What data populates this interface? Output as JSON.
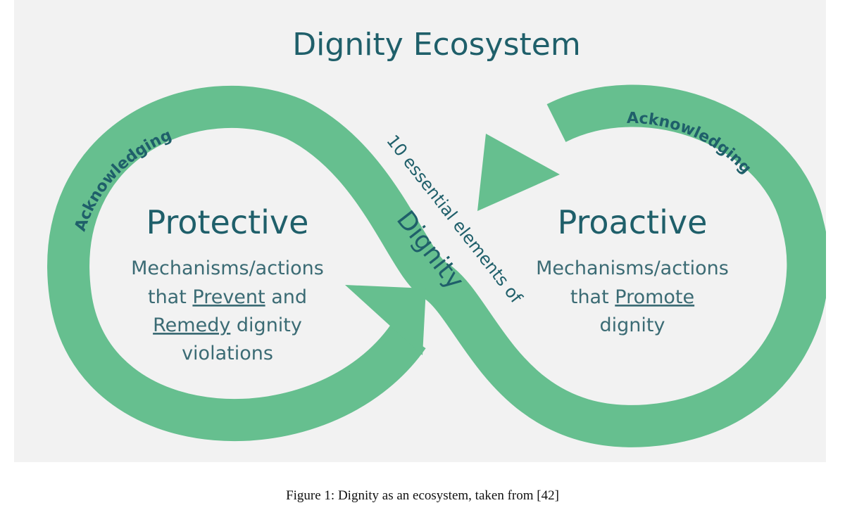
{
  "diagram": {
    "title": "Dignity Ecosystem",
    "loop_label_left": "Acknowledging",
    "loop_label_right": "Acknowledging",
    "center_small": "10 essential elements of",
    "center_big": "Dignity",
    "left": {
      "heading": "Protective",
      "line1": "Mechanisms/actions",
      "line2_pre": "that ",
      "line2_link": "Prevent",
      "line2_post": " and",
      "line3_link": "Remedy",
      "line3_post": " dignity",
      "line4": "violations"
    },
    "right": {
      "heading": "Proactive",
      "line1": "Mechanisms/actions",
      "line2_pre": "that ",
      "line2_link": "Promote",
      "line3": "dignity"
    },
    "colors": {
      "loop": "#66bf8f",
      "text": "#1f5f6a",
      "background": "#f2f2f2"
    }
  },
  "caption": "Figure 1: Dignity as an ecosystem, taken from [42]"
}
